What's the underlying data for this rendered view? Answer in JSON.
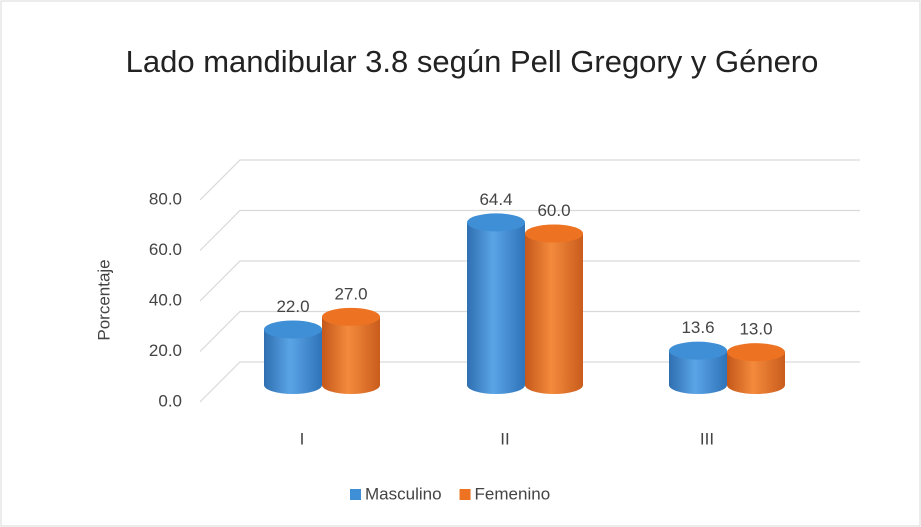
{
  "chart_data": {
    "type": "bar",
    "title": "Lado mandibular 3.8 según Pell Gregory y Género",
    "y_label": "Porcentaje",
    "categories": [
      "I",
      "II",
      "III"
    ],
    "series": [
      {
        "name": "Masculino",
        "color": "#3f8fd6",
        "values": [
          22.0,
          64.4,
          13.6
        ],
        "value_labels": [
          "22.0",
          "64.4",
          "13.6"
        ]
      },
      {
        "name": "Femenino",
        "color": "#ed7323",
        "values": [
          27.0,
          60.0,
          13.0
        ],
        "value_labels": [
          "27.0",
          "60.0",
          "13.0"
        ]
      }
    ],
    "ylim": [
      0,
      80
    ],
    "yticks": [
      {
        "value": 0,
        "label": "0.0"
      },
      {
        "value": 20,
        "label": "20.0"
      },
      {
        "value": 40,
        "label": "40.0"
      },
      {
        "value": 60,
        "label": "60.0"
      },
      {
        "value": 80,
        "label": "80.0"
      }
    ],
    "grid": true,
    "legend": "bottom"
  }
}
